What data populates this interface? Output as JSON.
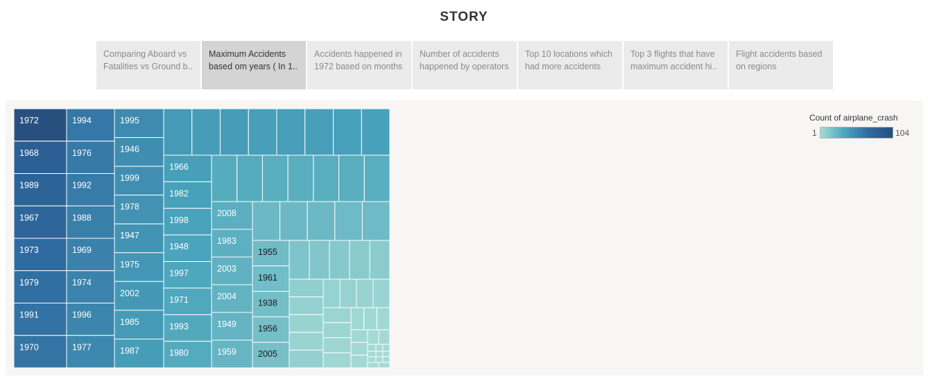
{
  "story": {
    "title": "STORY"
  },
  "tabs": [
    {
      "line1": "Comparing Aboard vs",
      "line2": "Fatalities vs Ground b..",
      "active": false
    },
    {
      "line1": "Maximum Accidents",
      "line2": "based om years ( In 1..",
      "active": true
    },
    {
      "line1": "Accidents happened in",
      "line2": "1972 based on months",
      "active": false
    },
    {
      "line1": "Number of accidents",
      "line2": "happened by operators",
      "active": false
    },
    {
      "line1": "Top 10 locations which",
      "line2": "had more accidents",
      "active": false
    },
    {
      "line1": "Top 3 flights that have",
      "line2": "maximum accident hi..",
      "active": false
    },
    {
      "line1": "Flight accidents based",
      "line2": "on regions",
      "active": false
    }
  ],
  "legend": {
    "title": "Count of airplane_crash",
    "min_label": "1",
    "max_label": "104"
  },
  "colors": {
    "low": "#a6dbd5",
    "mid": "#4aa5bc",
    "midhigh": "#2f6aa0",
    "high": "#27507f",
    "label_light": "#ffffff",
    "label_dark": "#1a1a1a"
  },
  "chart_data": {
    "type": "treemap",
    "measure": "Count of airplane_crash",
    "color_range": [
      1,
      104
    ],
    "labeled": [
      {
        "year": "1972",
        "value": 104
      },
      {
        "year": "1968",
        "value": 97
      },
      {
        "year": "1989",
        "value": 95
      },
      {
        "year": "1967",
        "value": 94
      },
      {
        "year": "1973",
        "value": 92
      },
      {
        "year": "1979",
        "value": 90
      },
      {
        "year": "1991",
        "value": 89
      },
      {
        "year": "1970",
        "value": 88
      },
      {
        "year": "1994",
        "value": 87
      },
      {
        "year": "1976",
        "value": 86
      },
      {
        "year": "1992",
        "value": 85
      },
      {
        "year": "1988",
        "value": 84
      },
      {
        "year": "1969",
        "value": 83
      },
      {
        "year": "1974",
        "value": 82
      },
      {
        "year": "1996",
        "value": 81
      },
      {
        "year": "1977",
        "value": 80
      },
      {
        "year": "1995",
        "value": 79
      },
      {
        "year": "1946",
        "value": 78
      },
      {
        "year": "1999",
        "value": 77
      },
      {
        "year": "1978",
        "value": 76
      },
      {
        "year": "1947",
        "value": 75
      },
      {
        "year": "1975",
        "value": 74
      },
      {
        "year": "2002",
        "value": 73
      },
      {
        "year": "1985",
        "value": 72
      },
      {
        "year": "1987",
        "value": 71
      },
      {
        "year": "1966",
        "value": 70
      },
      {
        "year": "1982",
        "value": 69
      },
      {
        "year": "1998",
        "value": 68
      },
      {
        "year": "1948",
        "value": 67
      },
      {
        "year": "1997",
        "value": 66
      },
      {
        "year": "1971",
        "value": 65
      },
      {
        "year": "1993",
        "value": 64
      },
      {
        "year": "1980",
        "value": 63
      },
      {
        "year": "2008",
        "value": 60
      },
      {
        "year": "1983",
        "value": 59
      },
      {
        "year": "2003",
        "value": 58
      },
      {
        "year": "2004",
        "value": 57
      },
      {
        "year": "1949",
        "value": 56
      },
      {
        "year": "1959",
        "value": 55
      },
      {
        "year": "1955",
        "value": 50
      },
      {
        "year": "1961",
        "value": 49
      },
      {
        "year": "1938",
        "value": 48
      },
      {
        "year": "1956",
        "value": 47
      },
      {
        "year": "2005",
        "value": 46
      }
    ],
    "unlabeled_counts": [
      72,
      71,
      71,
      70,
      70,
      70,
      69,
      69,
      62,
      62,
      61,
      61,
      61,
      61,
      61,
      52,
      52,
      52,
      51,
      51,
      42,
      40,
      38,
      36,
      34,
      30,
      27,
      24,
      22,
      28,
      26,
      25,
      24,
      22,
      21,
      20,
      19,
      17,
      16,
      15,
      14,
      13,
      12,
      11,
      10,
      9,
      8,
      7,
      6,
      5,
      4,
      3,
      2,
      1
    ]
  }
}
